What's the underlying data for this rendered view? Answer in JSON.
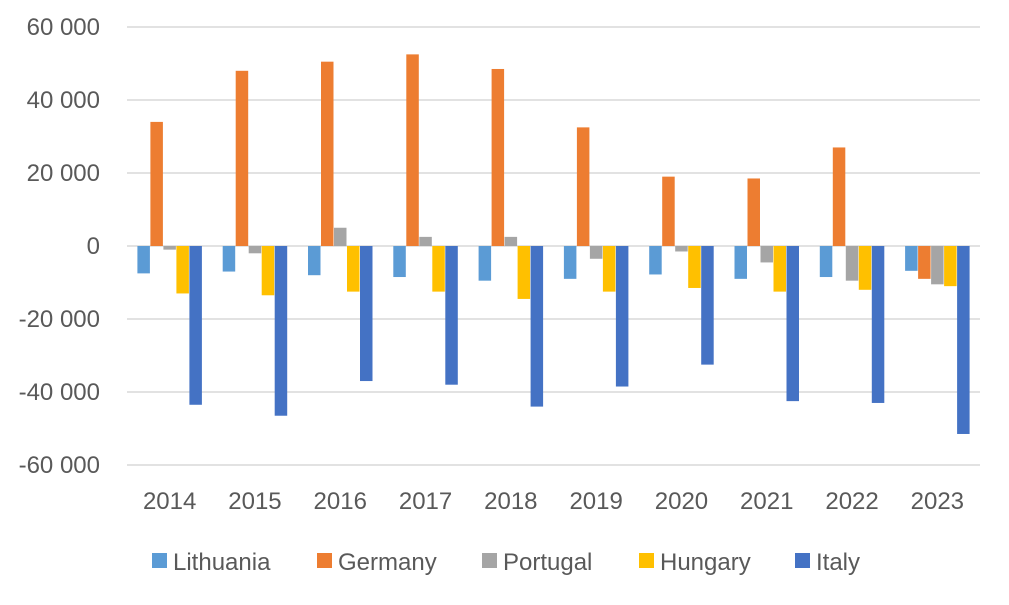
{
  "chart_data": {
    "type": "bar",
    "title": "",
    "xlabel": "",
    "ylabel": "",
    "categories": [
      "2014",
      "2015",
      "2016",
      "2017",
      "2018",
      "2019",
      "2020",
      "2021",
      "2022",
      "2023"
    ],
    "ylim": [
      -60000,
      60000
    ],
    "yticks": [
      60000,
      40000,
      20000,
      0,
      -20000,
      -40000,
      -60000
    ],
    "ytick_labels": [
      "60 000",
      "40 000",
      "20 000",
      "0",
      "-20 000",
      "-40 000",
      "-60 000"
    ],
    "grid": true,
    "legend_position": "bottom",
    "series": [
      {
        "name": "Lithuania",
        "color": "#5B9BD5",
        "values": [
          -7500,
          -7000,
          -8000,
          -8500,
          -9500,
          -9000,
          -7800,
          -9000,
          -8500,
          -6800
        ]
      },
      {
        "name": "Germany",
        "color": "#ED7D31",
        "values": [
          34000,
          48000,
          50500,
          52500,
          48500,
          32500,
          19000,
          18500,
          27000,
          -9000
        ]
      },
      {
        "name": "Portugal",
        "color": "#A5A5A5",
        "values": [
          -1000,
          -2000,
          5000,
          2500,
          2500,
          -3500,
          -1500,
          -4500,
          -9500,
          -10500
        ]
      },
      {
        "name": "Hungary",
        "color": "#FFC000",
        "values": [
          -13000,
          -13500,
          -12500,
          -12500,
          -14500,
          -12500,
          -11500,
          -12500,
          -12000,
          -11000
        ]
      },
      {
        "name": "Italy",
        "color": "#4472C4",
        "values": [
          -43500,
          -46500,
          -37000,
          -38000,
          -44000,
          -38500,
          -32500,
          -42500,
          -43000,
          -51500
        ]
      }
    ]
  }
}
